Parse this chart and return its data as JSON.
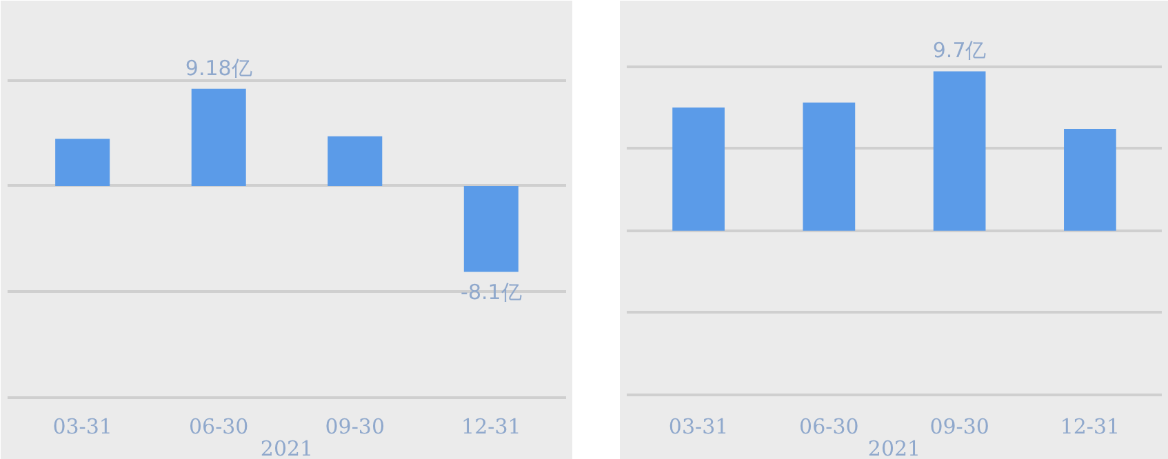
{
  "chart_data": [
    {
      "type": "bar",
      "xlabel": "2021",
      "categories": [
        "03-31",
        "06-30",
        "09-30",
        "12-31"
      ],
      "values": [
        4.45,
        9.18,
        4.7,
        -8.1
      ],
      "value_labels": [
        null,
        "9.18亿",
        null,
        "-8.1亿"
      ],
      "color": "#5b9be8",
      "ylim": [
        -20.5,
        17.5
      ],
      "yticks": [
        {
          "value": -20,
          "label": null
        },
        {
          "value": -10,
          "label": null
        },
        {
          "value": 0,
          "label": null
        },
        {
          "value": 10,
          "label": null
        }
      ],
      "grid": "y",
      "tick_labels": "x"
    },
    {
      "type": "bar",
      "xlabel": "2021",
      "categories": [
        "03-31",
        "06-30",
        "09-30",
        "12-31"
      ],
      "values": [
        7.5,
        7.8,
        9.7,
        6.2
      ],
      "value_labels": [
        null,
        null,
        "9.7亿",
        null
      ],
      "color": "#5b9be8",
      "ylim": [
        -10.5,
        14
      ],
      "yticks": [
        {
          "value": -10,
          "label": null
        },
        {
          "value": -5,
          "label": null
        },
        {
          "value": 0,
          "label": null
        },
        {
          "value": 5,
          "label": null
        },
        {
          "value": 10,
          "label": null
        }
      ],
      "grid": "y",
      "tick_labels": "x"
    }
  ]
}
